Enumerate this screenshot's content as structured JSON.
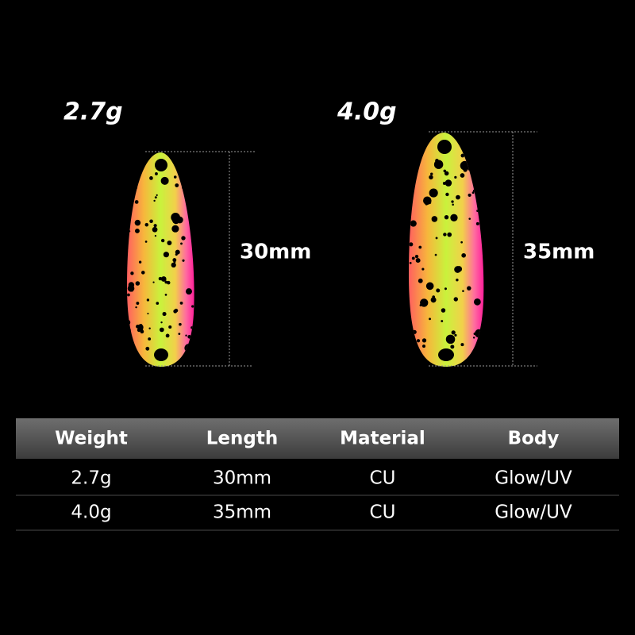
{
  "products": [
    {
      "weight": "2.7g",
      "length": "30mm"
    },
    {
      "weight": "4.0g",
      "length": "35mm"
    }
  ],
  "table": {
    "headers": [
      "Weight",
      "Length",
      "Material",
      "Body"
    ],
    "rows": [
      [
        "2.7g",
        "30mm",
        "CU",
        "Glow/UV"
      ],
      [
        "4.0g",
        "35mm",
        "CU",
        "Glow/UV"
      ]
    ]
  }
}
